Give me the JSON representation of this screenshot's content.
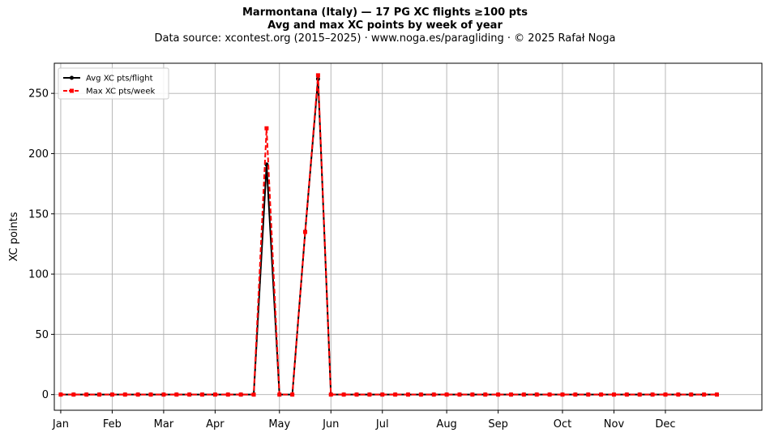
{
  "chart_data": {
    "type": "line",
    "title": "Marmontana (Italy)  —  17 PG XC flights ≥100 pts",
    "subtitle": "Avg and max XC points by week of year",
    "source": "Data source: xcontest.org (2015–2025)  ·  www.noga.es/paragliding  ·  © 2025 Rafał Noga",
    "xlabel": "",
    "ylabel": "XC points",
    "xlim": [
      -0.5,
      54.5
    ],
    "ylim": [
      -13,
      275
    ],
    "yticks": [
      0,
      50,
      100,
      150,
      200,
      250
    ],
    "month_ticks": [
      {
        "label": "Jan",
        "week": 0
      },
      {
        "label": "Feb",
        "week": 4
      },
      {
        "label": "Mar",
        "week": 8
      },
      {
        "label": "Apr",
        "week": 12
      },
      {
        "label": "May",
        "week": 17
      },
      {
        "label": "Jun",
        "week": 21
      },
      {
        "label": "Jul",
        "week": 25
      },
      {
        "label": "Aug",
        "week": 30
      },
      {
        "label": "Sep",
        "week": 34
      },
      {
        "label": "Oct",
        "week": 39
      },
      {
        "label": "Nov",
        "week": 43
      },
      {
        "label": "Dec",
        "week": 47
      }
    ],
    "grid": true,
    "legend_position": "top-left",
    "x": [
      0,
      1,
      2,
      3,
      4,
      5,
      6,
      7,
      8,
      9,
      10,
      11,
      12,
      13,
      14,
      15,
      16,
      17,
      18,
      19,
      20,
      21,
      22,
      23,
      24,
      25,
      26,
      27,
      28,
      29,
      30,
      31,
      32,
      33,
      34,
      35,
      36,
      37,
      38,
      39,
      40,
      41,
      42,
      43,
      44,
      45,
      46,
      47,
      48,
      49,
      50,
      51
    ],
    "series": [
      {
        "name": "Avg XC pts/flight",
        "color": "#000000",
        "style": "solid-circle",
        "values": [
          0,
          0,
          0,
          0,
          0,
          0,
          0,
          0,
          0,
          0,
          0,
          0,
          0,
          0,
          0,
          0,
          191,
          0,
          0,
          135,
          262,
          0,
          0,
          0,
          0,
          0,
          0,
          0,
          0,
          0,
          0,
          0,
          0,
          0,
          0,
          0,
          0,
          0,
          0,
          0,
          0,
          0,
          0,
          0,
          0,
          0,
          0,
          0,
          0,
          0,
          0,
          0
        ]
      },
      {
        "name": "Max XC pts/week",
        "color": "#ff0000",
        "style": "dashed-square",
        "values": [
          0,
          0,
          0,
          0,
          0,
          0,
          0,
          0,
          0,
          0,
          0,
          0,
          0,
          0,
          0,
          0,
          221,
          0,
          0,
          135,
          265,
          0,
          0,
          0,
          0,
          0,
          0,
          0,
          0,
          0,
          0,
          0,
          0,
          0,
          0,
          0,
          0,
          0,
          0,
          0,
          0,
          0,
          0,
          0,
          0,
          0,
          0,
          0,
          0,
          0,
          0,
          0
        ]
      }
    ]
  }
}
